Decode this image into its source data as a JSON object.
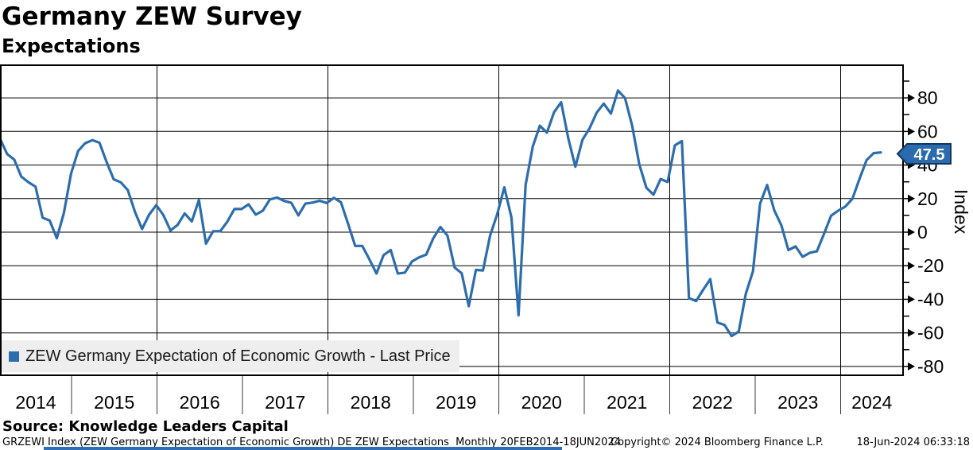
{
  "header": {
    "title": "Germany ZEW Survey",
    "subtitle": "Expectations"
  },
  "legend": {
    "entry": "ZEW Germany Expectation of Economic Growth - Last Price",
    "swatch_color": "#2d6dad",
    "background": "#eeeeee"
  },
  "colors": {
    "line": "#2d6dad",
    "tag_fill": "#2a6aae",
    "tag_border": "#16355e",
    "grid": "#000000"
  },
  "footer": {
    "source": "Source: Knowledge Leaders Capital",
    "description": "GRZEWI Index (ZEW Germany Expectation of Economic Growth) DE ZEW Expectations  Monthly 20FEB2014-18JUN2024",
    "copyright": "Copyright© 2024 Bloomberg Finance L.P.",
    "timestamp": "18-Jun-2024 06:33:18"
  },
  "chart_data": {
    "type": "line",
    "title": "Germany ZEW Survey",
    "subtitle": "Expectations",
    "frequency": "monthly",
    "x_start": "2014-02",
    "x_end": "2024-06",
    "x_tick_labels": [
      "2014",
      "2015",
      "2016",
      "2017",
      "2018",
      "2019",
      "2020",
      "2021",
      "2022",
      "2023",
      "2024"
    ],
    "ylabel": "Index",
    "ylim": [
      -85,
      99
    ],
    "y_major_ticks": [
      80,
      60,
      40,
      20,
      0,
      -20,
      -40,
      -60,
      -80
    ],
    "y_minor_ticks": [
      90,
      70,
      50,
      30,
      10,
      -10,
      -30,
      -50,
      -70
    ],
    "grid": true,
    "legend_position": "bottom-left",
    "last_price": 47.5,
    "last_price_label": "47.5",
    "series": [
      {
        "name": "ZEW Germany Expectation of Economic Growth - Last Price",
        "color": "#2d6dad",
        "values": [
          55.7,
          46.6,
          43.2,
          33.1,
          29.8,
          27.1,
          8.6,
          6.9,
          -3.6,
          11.5,
          34.9,
          48.4,
          53.0,
          54.8,
          53.3,
          41.9,
          31.5,
          29.7,
          25.0,
          12.1,
          1.9,
          10.4,
          16.1,
          10.2,
          1.0,
          4.3,
          11.2,
          6.4,
          19.2,
          -6.8,
          0.5,
          0.5,
          6.2,
          13.8,
          13.8,
          16.6,
          10.4,
          12.8,
          19.5,
          20.6,
          18.6,
          17.5,
          10.0,
          17.0,
          17.6,
          18.7,
          17.4,
          20.4,
          17.8,
          5.1,
          -8.2,
          -8.2,
          -16.1,
          -24.7,
          -13.7,
          -10.6,
          -24.7,
          -24.1,
          -17.5,
          -15.0,
          -13.4,
          -3.6,
          3.1,
          -2.1,
          -21.1,
          -24.5,
          -44.1,
          -22.5,
          -22.8,
          -2.1,
          10.7,
          26.7,
          8.7,
          -49.5,
          28.2,
          51.0,
          63.4,
          59.3,
          71.5,
          77.4,
          56.1,
          39.0,
          55.0,
          61.8,
          71.2,
          76.6,
          70.7,
          84.4,
          79.8,
          63.3,
          40.4,
          26.5,
          22.3,
          31.7,
          29.9,
          51.7,
          54.3,
          -39.3,
          -41.0,
          -34.3,
          -28.0,
          -53.8,
          -55.3,
          -61.9,
          -59.2,
          -36.7,
          -23.3,
          16.9,
          28.1,
          13.0,
          4.1,
          -10.7,
          -8.5,
          -14.7,
          -12.3,
          -11.4,
          -1.1,
          9.8,
          12.8,
          15.2,
          19.9,
          31.7,
          42.9,
          47.1,
          47.5
        ]
      }
    ]
  }
}
